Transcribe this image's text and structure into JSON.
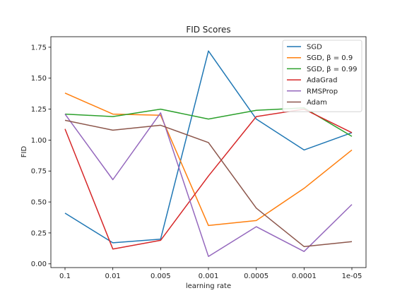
{
  "chart_data": {
    "type": "line",
    "title": "FID Scores",
    "xlabel": "learning rate",
    "ylabel": "FID",
    "categories": [
      "0.1",
      "0.01",
      "0.005",
      "0.001",
      "0.0005",
      "0.0001",
      "1e-05"
    ],
    "ylim": [
      -0.03,
      1.835
    ],
    "yticks": [
      "0.00",
      "0.25",
      "0.50",
      "0.75",
      "1.00",
      "1.25",
      "1.50",
      "1.75"
    ],
    "legend_position": "top-right",
    "grid": false,
    "series": [
      {
        "name": "SGD",
        "color": "#1f77b4",
        "values": [
          0.41,
          0.17,
          0.2,
          1.72,
          1.17,
          0.92,
          1.06
        ]
      },
      {
        "name": "SGD, β = 0.9",
        "color": "#ff7f0e",
        "values": [
          1.38,
          1.21,
          1.2,
          0.31,
          0.35,
          0.61,
          0.92
        ]
      },
      {
        "name": "SGD, β = 0.99",
        "color": "#2ca02c",
        "values": [
          1.21,
          1.19,
          1.25,
          1.17,
          1.24,
          1.26,
          1.03
        ]
      },
      {
        "name": "AdaGrad",
        "color": "#d62728",
        "values": [
          1.09,
          0.12,
          0.19,
          0.71,
          1.19,
          1.25,
          1.06
        ]
      },
      {
        "name": "RMSProp",
        "color": "#9467bd",
        "values": [
          1.21,
          0.68,
          1.22,
          0.06,
          0.3,
          0.1,
          0.48
        ]
      },
      {
        "name": "Adam",
        "color": "#8c564b",
        "values": [
          1.16,
          1.08,
          1.12,
          0.98,
          0.45,
          0.14,
          0.18
        ]
      }
    ]
  }
}
